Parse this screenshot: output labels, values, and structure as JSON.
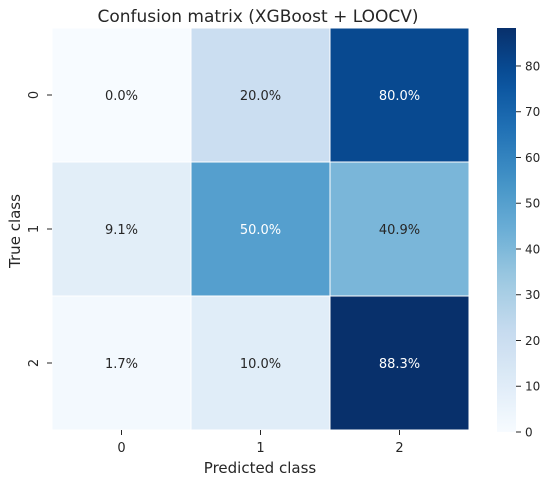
{
  "chart_data": {
    "type": "heatmap",
    "title": "Confusion matrix (XGBoost + LOOCV)",
    "xlabel": "Predicted class",
    "ylabel": "True class",
    "x_categories": [
      "0",
      "1",
      "2"
    ],
    "y_categories": [
      "0",
      "1",
      "2"
    ],
    "values": [
      [
        0.0,
        20.0,
        80.0
      ],
      [
        9.1,
        50.0,
        40.9
      ],
      [
        1.7,
        10.0,
        88.3
      ]
    ],
    "cell_labels": [
      [
        "0.0%",
        "20.0%",
        "80.0%"
      ],
      [
        "9.1%",
        "50.0%",
        "40.9%"
      ],
      [
        "1.7%",
        "10.0%",
        "88.3%"
      ]
    ],
    "colorbar": {
      "min": 0,
      "max": 88.3,
      "ticks": [
        0,
        10,
        20,
        30,
        40,
        50,
        60,
        70,
        80
      ],
      "colormap": "Blues"
    },
    "colors": {
      "low": "#f7fbff",
      "high": "#08306b",
      "text_dark": "#262626",
      "text_light": "#ffffff"
    }
  }
}
